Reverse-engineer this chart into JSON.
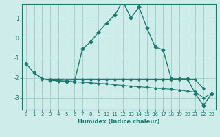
{
  "xlabel": "Humidex (Indice chaleur)",
  "background_color": "#ceecea",
  "grid_color": "#aacfcd",
  "line_color": "#1a7a6e",
  "x_values": [
    0,
    1,
    2,
    3,
    4,
    5,
    6,
    7,
    8,
    9,
    10,
    11,
    12,
    13,
    14,
    15,
    16,
    17,
    18,
    19,
    20,
    21,
    22,
    23
  ],
  "series": [
    [
      null,
      -1.75,
      -2.05,
      -2.1,
      -2.1,
      -2.12,
      -2.1,
      -2.1,
      -2.1,
      -2.1,
      -2.1,
      -2.1,
      -2.1,
      -2.1,
      -2.1,
      -2.1,
      -2.1,
      -2.1,
      -2.1,
      -2.1,
      -2.1,
      -2.1,
      -2.55,
      null
    ],
    [
      null,
      -1.75,
      -2.05,
      -2.12,
      -2.15,
      -2.18,
      -2.2,
      -2.22,
      -2.25,
      -2.28,
      -2.3,
      -2.35,
      -2.38,
      -2.42,
      -2.45,
      -2.48,
      -2.52,
      -2.55,
      -2.58,
      -2.62,
      -2.68,
      -2.72,
      -3.0,
      -2.8
    ],
    [
      -1.3,
      -1.75,
      -2.05,
      -2.12,
      -2.15,
      -2.18,
      -2.2,
      -0.55,
      -0.2,
      0.3,
      0.75,
      1.15,
      1.85,
      1.0,
      1.55,
      0.5,
      -0.45,
      -0.6,
      -2.05,
      -2.05,
      -2.05,
      -2.8,
      -3.4,
      -2.8
    ]
  ],
  "ylim": [
    -3.6,
    1.7
  ],
  "xlim": [
    -0.5,
    23.5
  ],
  "yticks": [
    -3,
    -2,
    -1,
    0,
    1
  ],
  "xticks": [
    0,
    1,
    2,
    3,
    4,
    5,
    6,
    7,
    8,
    9,
    10,
    11,
    12,
    13,
    14,
    15,
    16,
    17,
    18,
    19,
    20,
    21,
    22,
    23
  ]
}
